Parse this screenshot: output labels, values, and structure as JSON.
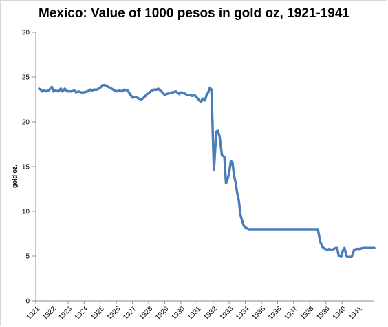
{
  "chart_data": {
    "type": "line",
    "title": "Mexico: Value of 1000 pesos in gold oz, 1921-1941",
    "xlabel": "",
    "ylabel": "gold oz.",
    "ylim": [
      0,
      30
    ],
    "y_ticks": [
      0,
      5,
      10,
      15,
      20,
      25,
      30
    ],
    "xlim": [
      1921,
      1942
    ],
    "x_ticks": [
      "1921",
      "1922",
      "1923",
      "1924",
      "1925",
      "1926",
      "1927",
      "1928",
      "1929",
      "1930",
      "1931",
      "1932",
      "1933",
      "1934",
      "1935",
      "1936",
      "1937",
      "1938",
      "1939",
      "1940",
      "1941"
    ],
    "grid": false,
    "legend": "none",
    "color": "#4a7ebb",
    "series": [
      {
        "x": [
          1921.2,
          1921.3,
          1921.4,
          1921.5,
          1921.7,
          1921.85,
          1922.0,
          1922.1,
          1922.2,
          1922.4,
          1922.55,
          1922.65,
          1922.8,
          1922.9,
          1923.0,
          1923.2,
          1923.4,
          1923.5,
          1923.65,
          1923.8,
          1924.0,
          1924.2,
          1924.4,
          1924.5,
          1924.6,
          1924.8,
          1925.0,
          1925.15,
          1925.3,
          1925.5,
          1925.6,
          1925.8,
          1926.0,
          1926.2,
          1926.35,
          1926.5,
          1926.7,
          1926.85,
          1927.0,
          1927.2,
          1927.4,
          1927.55,
          1927.7,
          1927.9,
          1928.0,
          1928.2,
          1928.35,
          1928.5,
          1928.6,
          1928.8,
          1929.0,
          1929.1,
          1929.3,
          1929.5,
          1929.7,
          1929.9,
          1930.0,
          1930.2,
          1930.4,
          1930.55,
          1930.7,
          1930.85,
          1931.0,
          1931.15,
          1931.25,
          1931.35,
          1931.5,
          1931.6,
          1931.7,
          1931.8,
          1931.9,
          1932.05,
          1932.2,
          1932.3,
          1932.4,
          1932.55,
          1932.7,
          1932.8,
          1932.9,
          1933.0,
          1933.1,
          1933.2,
          1933.3,
          1933.4,
          1933.5,
          1933.6,
          1933.7,
          1933.8,
          1933.9,
          1934.0,
          1934.2,
          1935.0,
          1936.0,
          1937.0,
          1938.0,
          1938.5,
          1938.65,
          1938.8,
          1938.95,
          1939.1,
          1939.2,
          1939.35,
          1939.5,
          1939.6,
          1939.7,
          1939.8,
          1939.95,
          1940.05,
          1940.15,
          1940.3,
          1940.5,
          1940.6,
          1940.75,
          1940.9,
          1941.1,
          1941.3,
          1941.6,
          1942.0
        ],
        "y": [
          23.7,
          23.6,
          23.4,
          23.5,
          23.4,
          23.6,
          23.9,
          23.4,
          23.5,
          23.4,
          23.7,
          23.4,
          23.7,
          23.5,
          23.4,
          23.4,
          23.5,
          23.3,
          23.4,
          23.3,
          23.3,
          23.4,
          23.6,
          23.5,
          23.6,
          23.6,
          23.8,
          24.1,
          24.1,
          23.9,
          23.8,
          23.6,
          23.4,
          23.5,
          23.4,
          23.6,
          23.5,
          23.1,
          22.7,
          22.8,
          22.6,
          22.5,
          22.7,
          23.1,
          23.2,
          23.5,
          23.6,
          23.6,
          23.7,
          23.4,
          23.0,
          23.1,
          23.2,
          23.3,
          23.4,
          23.1,
          23.3,
          23.2,
          23.0,
          23.0,
          22.9,
          23.0,
          22.7,
          22.4,
          22.2,
          22.6,
          22.4,
          23.0,
          23.3,
          23.8,
          23.6,
          14.6,
          18.9,
          19.0,
          18.4,
          16.3,
          16.1,
          13.1,
          13.6,
          14.3,
          15.6,
          15.5,
          14.0,
          13.2,
          12.0,
          11.2,
          9.6,
          9.0,
          8.4,
          8.2,
          8.0,
          8.0,
          8.0,
          8.0,
          8.0,
          8.0,
          6.6,
          6.0,
          5.8,
          5.7,
          5.8,
          5.7,
          5.8,
          5.9,
          5.9,
          5.0,
          4.9,
          5.6,
          5.9,
          4.9,
          4.9,
          4.9,
          5.7,
          5.8,
          5.8,
          5.9,
          5.9,
          5.9
        ]
      }
    ]
  }
}
